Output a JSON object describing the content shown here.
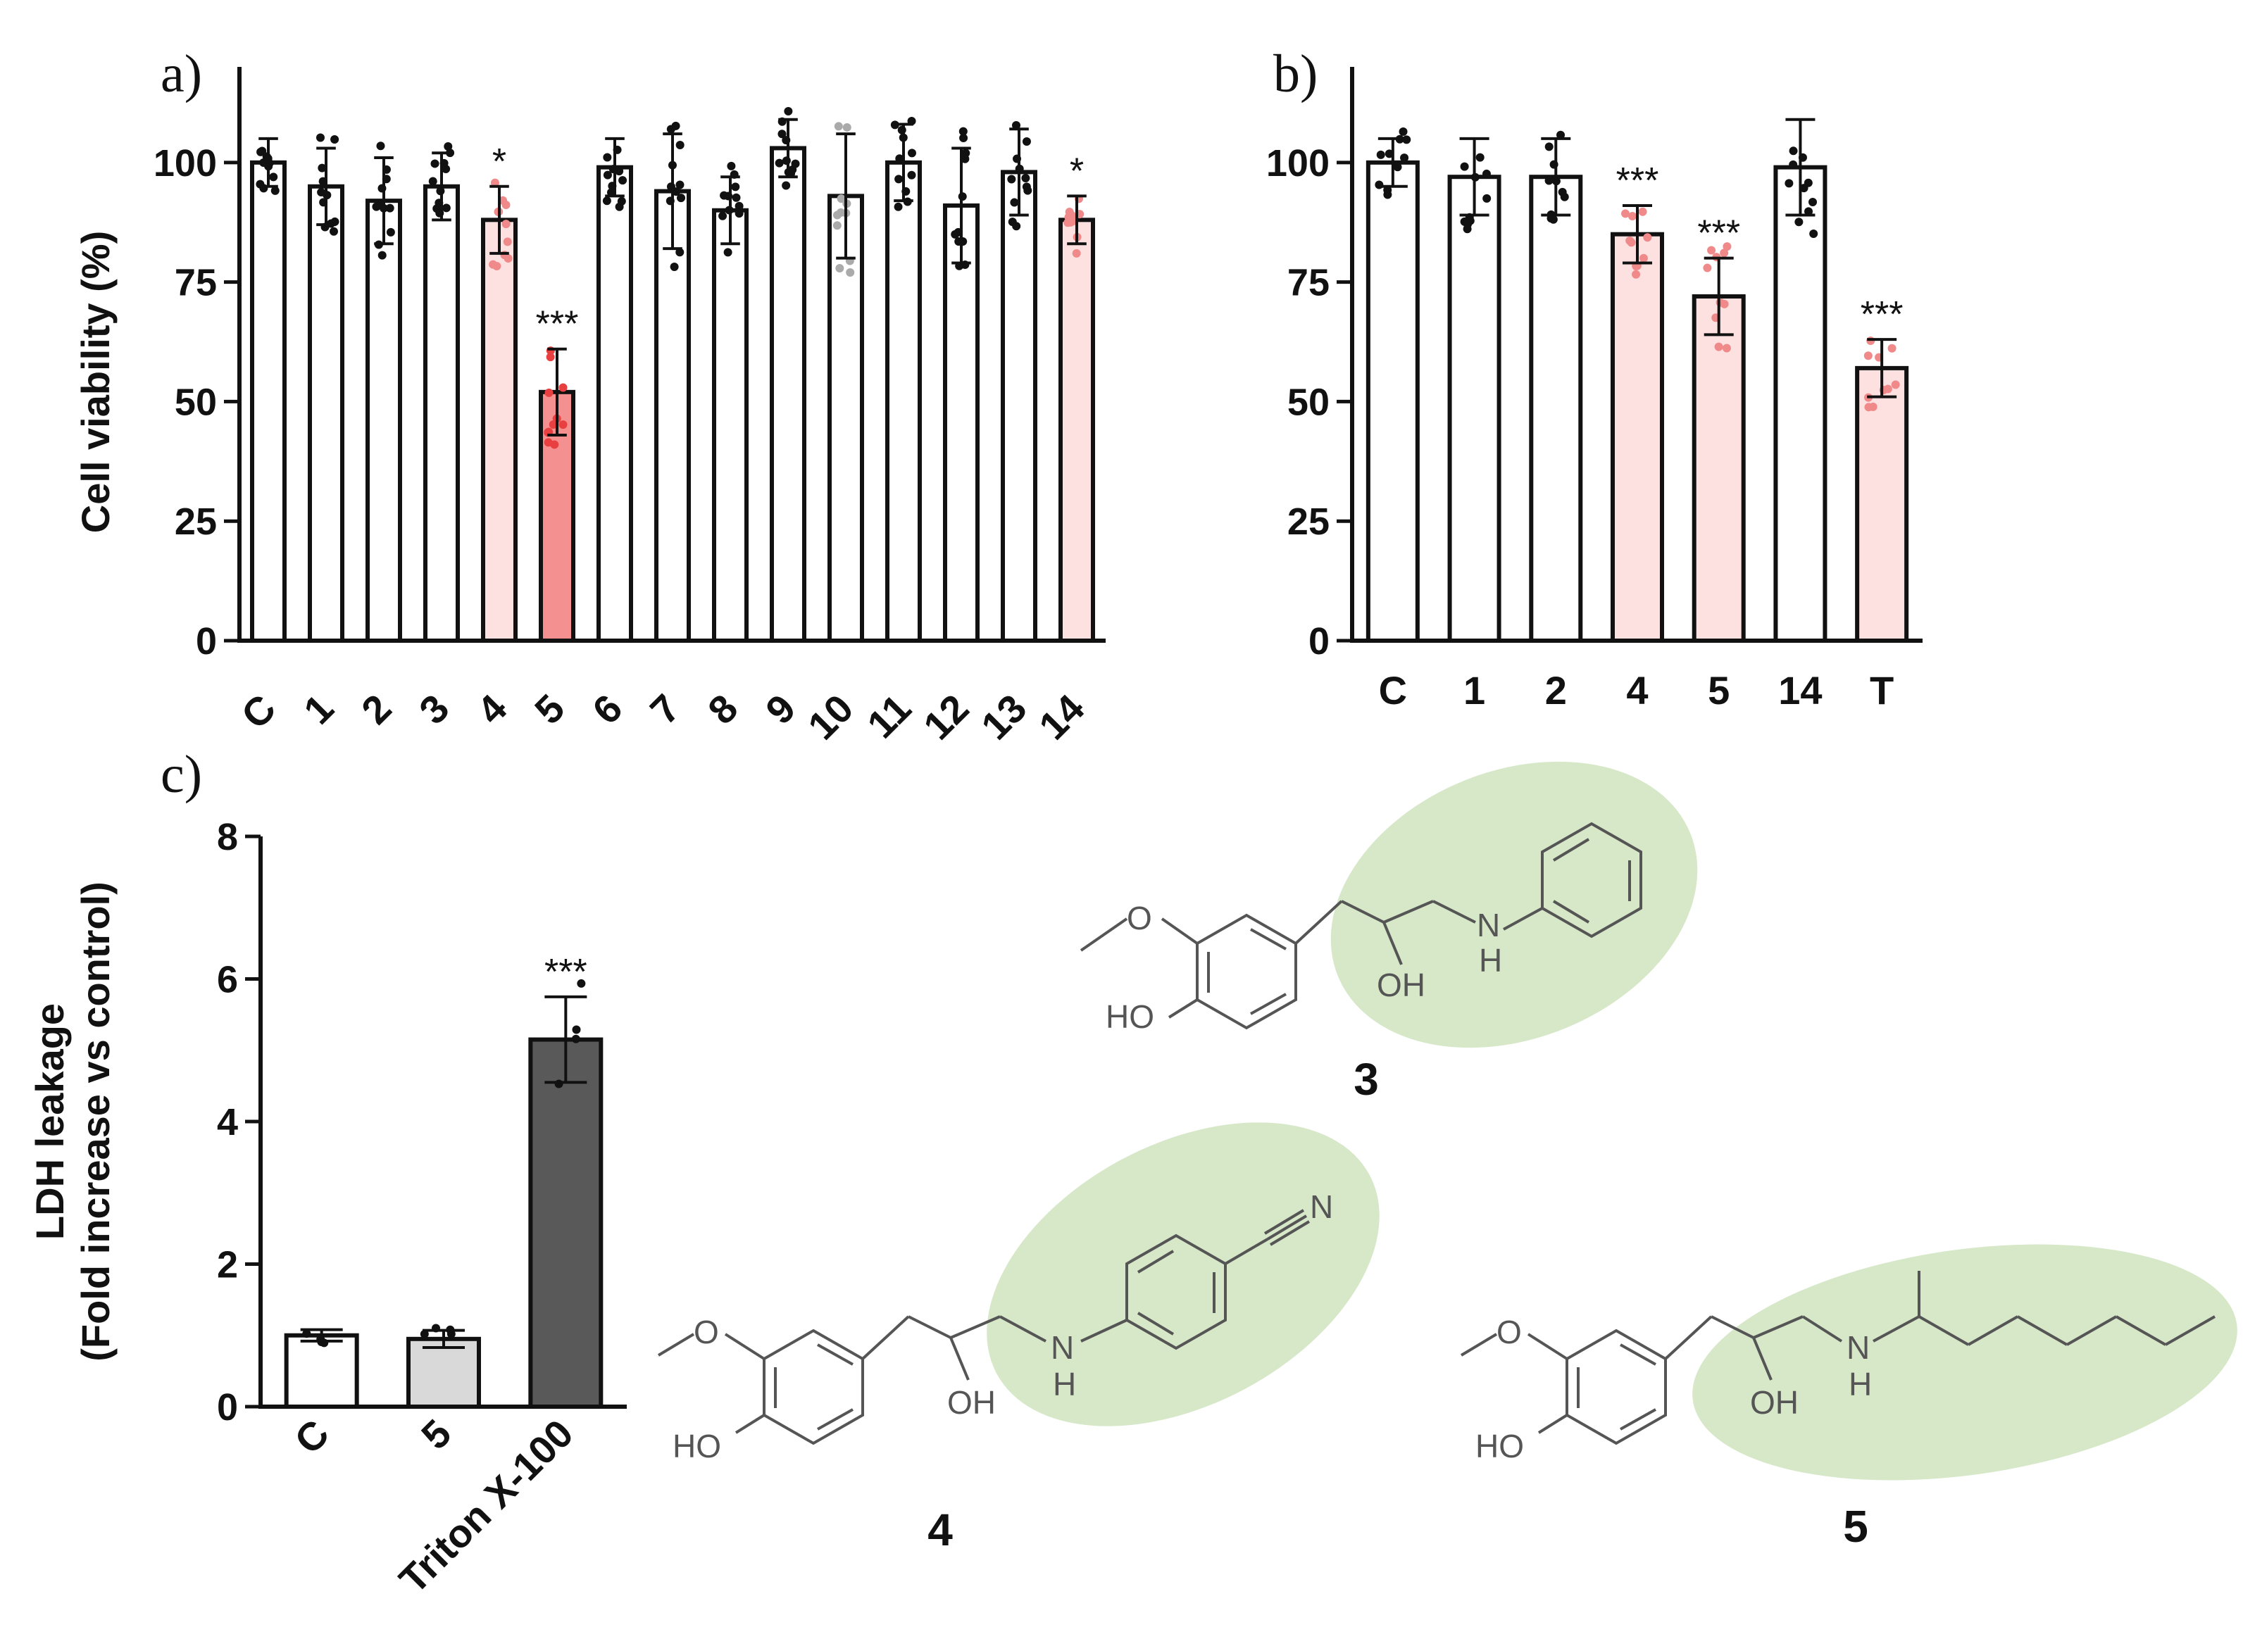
{
  "colors": {
    "axis": "#111111",
    "bar_white": "#ffffff",
    "bar_light_pink": "#fde0e0",
    "bar_red": "#f59090",
    "bar_light_gray": "#d9d9d9",
    "bar_dark_gray": "#595959",
    "dot_black": "#111111",
    "dot_pink": "#f08a8a",
    "dot_red": "#e84040",
    "dot_gray": "#aaaaaa",
    "highlight_green": "#d6e8c8"
  },
  "chart_data": [
    {
      "id": "a",
      "panel_label": "a)",
      "type": "bar",
      "ylabel": "Cell viability (%)",
      "ylim": [
        0,
        120
      ],
      "yticks": [
        0,
        25,
        50,
        75,
        100
      ],
      "categories": [
        "C",
        "1",
        "2",
        "3",
        "4",
        "5",
        "6",
        "7",
        "8",
        "9",
        "10",
        "11",
        "12",
        "13",
        "14"
      ],
      "values": [
        100,
        95,
        92,
        95,
        88,
        52,
        99,
        94,
        90,
        103,
        93,
        100,
        91,
        98,
        88
      ],
      "errors": [
        5,
        8,
        9,
        7,
        7,
        9,
        6,
        12,
        7,
        6,
        13,
        8,
        12,
        9,
        5
      ],
      "significance": [
        "",
        "",
        "",
        "",
        "*",
        "***",
        "",
        "",
        "",
        "",
        "",
        "",
        "",
        "",
        "*"
      ],
      "fill": [
        "white",
        "white",
        "white",
        "white",
        "light_pink",
        "red",
        "white",
        "white",
        "white",
        "white",
        "white",
        "white",
        "white",
        "white",
        "light_pink"
      ],
      "dot_color": [
        "black",
        "black",
        "black",
        "black",
        "pink",
        "red",
        "black",
        "black",
        "black",
        "black",
        "gray",
        "black",
        "black",
        "black",
        "pink"
      ],
      "tick_label_rotation": -45
    },
    {
      "id": "b",
      "panel_label": "b)",
      "type": "bar",
      "ylabel": "",
      "ylim": [
        0,
        120
      ],
      "yticks": [
        0,
        25,
        50,
        75,
        100
      ],
      "categories": [
        "C",
        "1",
        "2",
        "4",
        "5",
        "14",
        "T"
      ],
      "values": [
        100,
        97,
        97,
        85,
        72,
        99,
        57
      ],
      "errors": [
        5,
        8,
        8,
        6,
        8,
        10,
        6
      ],
      "significance": [
        "",
        "",
        "",
        "***",
        "***",
        "",
        "***"
      ],
      "fill": [
        "white",
        "white",
        "white",
        "light_pink",
        "light_pink",
        "white",
        "light_pink"
      ],
      "dot_color": [
        "black",
        "black",
        "black",
        "pink",
        "pink",
        "black",
        "pink"
      ],
      "tick_label_rotation": 0
    },
    {
      "id": "c",
      "panel_label": "c)",
      "type": "bar",
      "ylabel_line1": "LDH leakage",
      "ylabel_line2": "(Fold increase vs control)",
      "ylim": [
        0,
        8
      ],
      "yticks": [
        0,
        2,
        4,
        6,
        8
      ],
      "categories": [
        "C",
        "5",
        "Triton X-100"
      ],
      "values": [
        1.0,
        0.95,
        5.15
      ],
      "errors": [
        0.08,
        0.12,
        0.6
      ],
      "significance": [
        "",
        "",
        "***"
      ],
      "fill": [
        "white",
        "light_gray",
        "dark_gray"
      ],
      "dot_color": [
        "black",
        "black",
        "black"
      ],
      "tick_label_rotation": -45
    }
  ],
  "structures": {
    "labels": {
      "methoxy": "O",
      "hydroxy": "HO",
      "oh": "OH",
      "amine_n": "N",
      "amine_h": "H",
      "nitrile_n": "N"
    },
    "compounds": [
      "3",
      "4",
      "5"
    ]
  }
}
